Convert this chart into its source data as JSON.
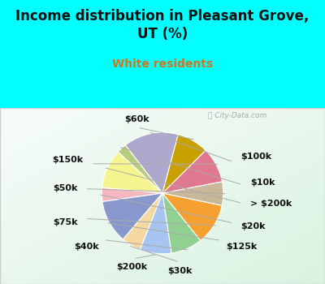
{
  "title": "Income distribution in Pleasant Grove,\nUT (%)",
  "subtitle": "White residents",
  "title_color": "#111111",
  "subtitle_color": "#cc7722",
  "bg_color": "#00FFFF",
  "watermark": "City-Data.com",
  "labels": [
    "$100k",
    "$10k",
    "> $200k",
    "$20k",
    "$125k",
    "$30k",
    "$200k",
    "$40k",
    "$75k",
    "$50k",
    "$150k",
    "$60k"
  ],
  "values": [
    14.0,
    2.5,
    10.0,
    3.5,
    11.0,
    5.0,
    8.0,
    8.0,
    10.5,
    6.0,
    9.0,
    8.0
  ],
  "colors": [
    "#aea8ce",
    "#b8cc80",
    "#f5f590",
    "#f5b8c0",
    "#8898cc",
    "#f5d8a0",
    "#a8c4f0",
    "#90d090",
    "#f5a030",
    "#c8b898",
    "#e07890",
    "#c8a000"
  ],
  "startangle": 75,
  "label_fontsize": 8,
  "title_fontsize": 12,
  "subtitle_fontsize": 10
}
